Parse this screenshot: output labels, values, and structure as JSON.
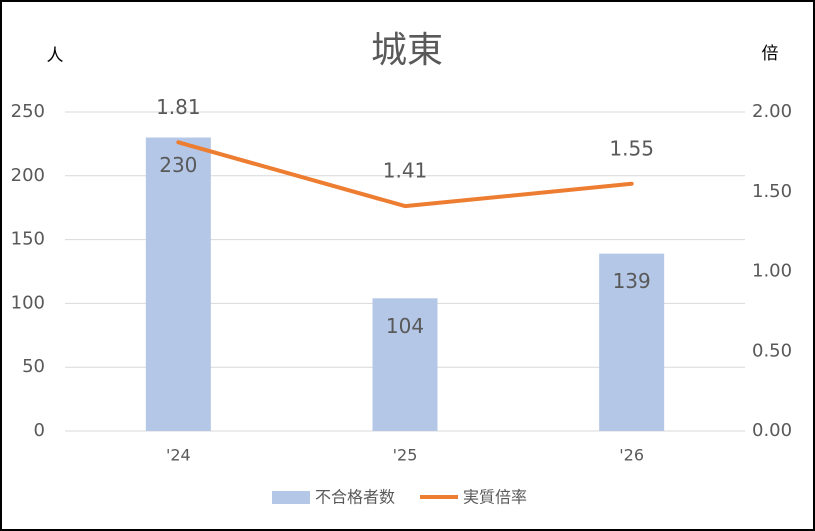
{
  "chart_data": {
    "type": "combo",
    "title": "城東",
    "y_unit": "人",
    "y2_unit": "倍",
    "categories": [
      "'24",
      "'25",
      "'26"
    ],
    "series": [
      {
        "name": "不合格者数",
        "type": "bar",
        "color": "#b4c7e7",
        "values": [
          230,
          104,
          139
        ]
      },
      {
        "name": "実質倍率",
        "type": "line",
        "axis": "y2",
        "color": "#ed7d31",
        "values": [
          1.81,
          1.41,
          1.55
        ]
      }
    ],
    "ylim": [
      0,
      250
    ],
    "yticks": [
      0,
      50,
      100,
      150,
      200,
      250
    ],
    "y2lim": [
      0,
      2
    ],
    "y2ticks": [
      {
        "value": 0,
        "label": "0.00"
      },
      {
        "value": 0.5,
        "label": "0.50"
      },
      {
        "value": 1,
        "label": "1.00"
      },
      {
        "value": 1.5,
        "label": "1.50"
      },
      {
        "value": 2,
        "label": "2.00"
      }
    ],
    "grid": true,
    "legend": "bottom"
  }
}
